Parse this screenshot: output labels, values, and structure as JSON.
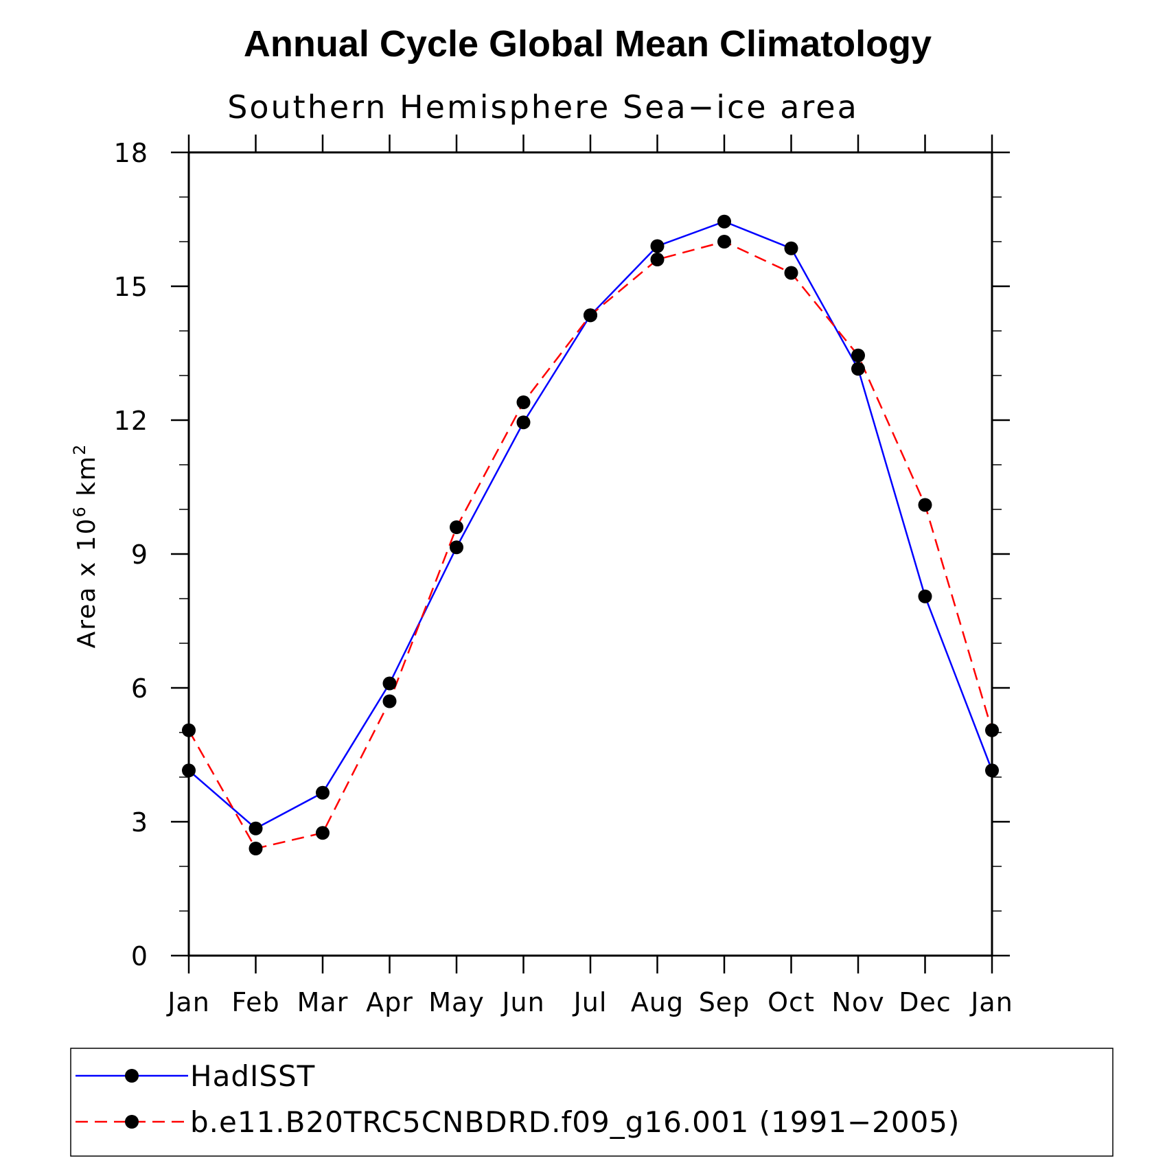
{
  "chart_data": {
    "type": "line",
    "title": "Annual Cycle Global Mean Climatology",
    "subtitle": "Southern Hemisphere Sea−ice area",
    "ylabel_prefix": "Area x 10",
    "ylabel_sup1": "6",
    "ylabel_unit": " km",
    "ylabel_sup2": "2",
    "categories": [
      "Jan",
      "Feb",
      "Mar",
      "Apr",
      "May",
      "Jun",
      "Jul",
      "Aug",
      "Sep",
      "Oct",
      "Nov",
      "Dec",
      "Jan"
    ],
    "ylim": [
      0,
      18
    ],
    "yticks": [
      0,
      3,
      6,
      9,
      12,
      15,
      18
    ],
    "series": [
      {
        "name": "HadISST",
        "color": "#0000ff",
        "dash": "solid",
        "values": [
          4.15,
          2.85,
          3.65,
          6.1,
          9.15,
          11.95,
          14.35,
          15.9,
          16.45,
          15.85,
          13.15,
          8.05,
          4.15
        ]
      },
      {
        "name": "b.e11.B20TRC5CNBDRD.f09_g16.001 (1991−2005)",
        "color": "#ff0000",
        "dash": "dashed",
        "values": [
          5.05,
          2.4,
          2.75,
          5.7,
          9.6,
          12.4,
          14.35,
          15.6,
          16.0,
          15.3,
          13.45,
          10.1,
          5.05
        ]
      }
    ],
    "legend_position": "bottom"
  }
}
